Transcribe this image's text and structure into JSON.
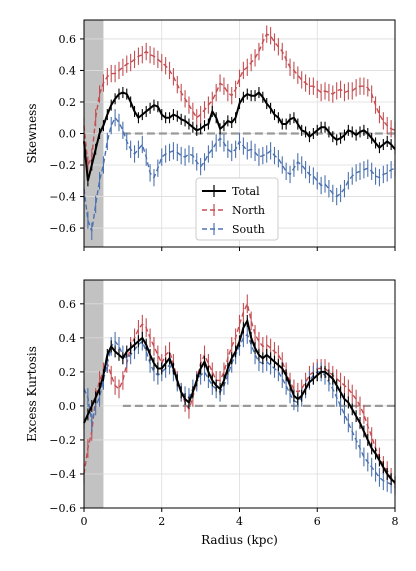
{
  "chart_data": [
    {
      "type": "line",
      "xlabel": "",
      "ylabel": "Skewness",
      "xlim": [
        0,
        8
      ],
      "ylim": [
        -0.72,
        0.72
      ],
      "xticks": [
        0,
        2,
        4,
        6,
        8
      ],
      "xticklabels": [
        "",
        "",
        "",
        "",
        ""
      ],
      "yticks": [
        -0.6,
        -0.4,
        -0.2,
        0.0,
        0.2,
        0.4,
        0.6
      ],
      "yticklabels": [
        "−0.6",
        "−0.4",
        "−0.2",
        "0.0",
        "0.2",
        "0.4",
        "0.6"
      ],
      "grid": true,
      "shaded_region_x": [
        0,
        0.5
      ],
      "reference_line_y": 0,
      "legend": {
        "position": "lower-center",
        "entries": [
          "Total",
          "North",
          "South"
        ]
      },
      "series": [
        {
          "name": "Total",
          "color": "#000000",
          "linestyle": "solid",
          "x": [
            0,
            0.1,
            0.2,
            0.3,
            0.4,
            0.5,
            0.6,
            0.7,
            0.8,
            0.9,
            1.0,
            1.1,
            1.2,
            1.3,
            1.4,
            1.5,
            1.6,
            1.7,
            1.8,
            1.9,
            2.0,
            2.1,
            2.2,
            2.3,
            2.4,
            2.5,
            2.6,
            2.7,
            2.8,
            2.9,
            3.0,
            3.1,
            3.2,
            3.3,
            3.4,
            3.5,
            3.6,
            3.7,
            3.8,
            3.9,
            4.0,
            4.1,
            4.2,
            4.3,
            4.4,
            4.5,
            4.6,
            4.7,
            4.8,
            4.9,
            5.0,
            5.1,
            5.2,
            5.3,
            5.4,
            5.5,
            5.6,
            5.7,
            5.8,
            5.9,
            6.0,
            6.1,
            6.2,
            6.3,
            6.4,
            6.5,
            6.6,
            6.7,
            6.8,
            6.9,
            7.0,
            7.1,
            7.2,
            7.3,
            7.4,
            7.5,
            7.6,
            7.7,
            7.8,
            7.9,
            8.0
          ],
          "y": [
            -0.05,
            -0.3,
            -0.2,
            -0.1,
            0.0,
            0.05,
            0.12,
            0.18,
            0.22,
            0.25,
            0.26,
            0.25,
            0.2,
            0.14,
            0.1,
            0.12,
            0.14,
            0.16,
            0.18,
            0.17,
            0.12,
            0.1,
            0.1,
            0.12,
            0.11,
            0.09,
            0.08,
            0.06,
            0.04,
            0.02,
            0.03,
            0.05,
            0.06,
            0.14,
            0.1,
            0.03,
            0.05,
            0.08,
            0.07,
            0.1,
            0.19,
            0.23,
            0.25,
            0.24,
            0.24,
            0.26,
            0.23,
            0.19,
            0.16,
            0.12,
            0.1,
            0.06,
            0.06,
            0.09,
            0.1,
            0.06,
            0.02,
            0.01,
            -0.02,
            0.0,
            0.02,
            0.04,
            0.04,
            0.01,
            -0.02,
            -0.04,
            -0.03,
            -0.01,
            0.02,
            0.01,
            -0.01,
            0.01,
            0.02,
            0.0,
            -0.03,
            -0.06,
            -0.09,
            -0.07,
            -0.05,
            -0.07,
            -0.1
          ]
        },
        {
          "name": "North",
          "color": "#c44e52",
          "linestyle": "dashed",
          "x": [
            0,
            0.1,
            0.2,
            0.3,
            0.4,
            0.5,
            0.6,
            0.7,
            0.8,
            0.9,
            1.0,
            1.1,
            1.2,
            1.3,
            1.4,
            1.5,
            1.6,
            1.7,
            1.8,
            1.9,
            2.0,
            2.1,
            2.2,
            2.3,
            2.4,
            2.5,
            2.6,
            2.7,
            2.8,
            2.9,
            3.0,
            3.1,
            3.2,
            3.3,
            3.4,
            3.5,
            3.6,
            3.7,
            3.8,
            3.9,
            4.0,
            4.1,
            4.2,
            4.3,
            4.4,
            4.5,
            4.6,
            4.7,
            4.8,
            4.9,
            5.0,
            5.1,
            5.2,
            5.3,
            5.4,
            5.5,
            5.6,
            5.7,
            5.8,
            5.9,
            6.0,
            6.1,
            6.2,
            6.3,
            6.4,
            6.5,
            6.6,
            6.7,
            6.8,
            6.9,
            7.0,
            7.1,
            7.2,
            7.3,
            7.4,
            7.5,
            7.6,
            7.7,
            7.8,
            7.9,
            8.0
          ],
          "y": [
            0.05,
            -0.2,
            -0.15,
            0.1,
            0.25,
            0.32,
            0.36,
            0.38,
            0.38,
            0.4,
            0.42,
            0.44,
            0.45,
            0.47,
            0.49,
            0.5,
            0.52,
            0.5,
            0.49,
            0.47,
            0.45,
            0.43,
            0.4,
            0.36,
            0.31,
            0.26,
            0.22,
            0.18,
            0.14,
            0.1,
            0.12,
            0.15,
            0.18,
            0.21,
            0.26,
            0.32,
            0.3,
            0.26,
            0.24,
            0.28,
            0.35,
            0.4,
            0.42,
            0.45,
            0.48,
            0.52,
            0.58,
            0.63,
            0.62,
            0.58,
            0.55,
            0.52,
            0.47,
            0.42,
            0.4,
            0.37,
            0.34,
            0.32,
            0.3,
            0.3,
            0.28,
            0.26,
            0.27,
            0.26,
            0.25,
            0.27,
            0.28,
            0.26,
            0.27,
            0.27,
            0.29,
            0.3,
            0.3,
            0.29,
            0.25,
            0.18,
            0.12,
            0.08,
            0.05,
            0.03,
            0.02
          ]
        },
        {
          "name": "South",
          "color": "#4c72b0",
          "linestyle": "dashed",
          "x": [
            0,
            0.1,
            0.2,
            0.3,
            0.4,
            0.5,
            0.6,
            0.7,
            0.8,
            0.9,
            1.0,
            1.1,
            1.2,
            1.3,
            1.4,
            1.5,
            1.6,
            1.7,
            1.8,
            1.9,
            2.0,
            2.1,
            2.2,
            2.3,
            2.4,
            2.5,
            2.6,
            2.7,
            2.8,
            2.9,
            3.0,
            3.1,
            3.2,
            3.3,
            3.4,
            3.5,
            3.6,
            3.7,
            3.8,
            3.9,
            4.0,
            4.1,
            4.2,
            4.3,
            4.4,
            4.5,
            4.6,
            4.7,
            4.8,
            4.9,
            5.0,
            5.1,
            5.2,
            5.3,
            5.4,
            5.5,
            5.6,
            5.7,
            5.8,
            5.9,
            6.0,
            6.1,
            6.2,
            6.3,
            6.4,
            6.5,
            6.6,
            6.7,
            6.8,
            6.9,
            7.0,
            7.1,
            7.2,
            7.3,
            7.4,
            7.5,
            7.6,
            7.7,
            7.8,
            7.9,
            8.0
          ],
          "y": [
            -0.35,
            -0.55,
            -0.62,
            -0.45,
            -0.3,
            -0.2,
            -0.05,
            0.05,
            0.1,
            0.07,
            0.02,
            -0.05,
            -0.1,
            -0.13,
            -0.1,
            -0.07,
            -0.15,
            -0.25,
            -0.28,
            -0.22,
            -0.15,
            -0.13,
            -0.12,
            -0.11,
            -0.12,
            -0.14,
            -0.15,
            -0.13,
            -0.14,
            -0.18,
            -0.21,
            -0.18,
            -0.13,
            -0.1,
            -0.06,
            -0.03,
            -0.06,
            -0.1,
            -0.12,
            -0.1,
            -0.05,
            -0.08,
            -0.11,
            -0.1,
            -0.12,
            -0.15,
            -0.14,
            -0.13,
            -0.11,
            -0.14,
            -0.16,
            -0.2,
            -0.24,
            -0.26,
            -0.22,
            -0.18,
            -0.2,
            -0.23,
            -0.26,
            -0.27,
            -0.3,
            -0.33,
            -0.32,
            -0.35,
            -0.38,
            -0.4,
            -0.38,
            -0.35,
            -0.3,
            -0.27,
            -0.25,
            -0.24,
            -0.23,
            -0.22,
            -0.24,
            -0.27,
            -0.28,
            -0.26,
            -0.25,
            -0.23,
            -0.22
          ]
        }
      ]
    },
    {
      "type": "line",
      "xlabel": "Radius (kpc)",
      "ylabel": "Excess Kurtosis",
      "xlim": [
        0,
        8
      ],
      "ylim": [
        -0.6,
        0.74
      ],
      "xticks": [
        0,
        2,
        4,
        6,
        8
      ],
      "xticklabels": [
        "0",
        "2",
        "4",
        "6",
        "8"
      ],
      "yticks": [
        -0.6,
        -0.4,
        -0.2,
        0.0,
        0.2,
        0.4,
        0.6
      ],
      "yticklabels": [
        "−0.6",
        "−0.4",
        "−0.2",
        "0.0",
        "0.2",
        "0.4",
        "0.6"
      ],
      "grid": true,
      "shaded_region_x": [
        0,
        0.5
      ],
      "reference_line_y": 0,
      "series": [
        {
          "name": "Total",
          "color": "#000000",
          "linestyle": "solid",
          "x": [
            0,
            0.1,
            0.2,
            0.3,
            0.4,
            0.5,
            0.6,
            0.7,
            0.8,
            0.9,
            1.0,
            1.1,
            1.2,
            1.3,
            1.4,
            1.5,
            1.6,
            1.7,
            1.8,
            1.9,
            2.0,
            2.1,
            2.2,
            2.3,
            2.4,
            2.5,
            2.6,
            2.7,
            2.8,
            2.9,
            3.0,
            3.1,
            3.2,
            3.3,
            3.4,
            3.5,
            3.6,
            3.7,
            3.8,
            3.9,
            4.0,
            4.1,
            4.2,
            4.3,
            4.4,
            4.5,
            4.6,
            4.7,
            4.8,
            4.9,
            5.0,
            5.1,
            5.2,
            5.3,
            5.4,
            5.5,
            5.6,
            5.7,
            5.8,
            5.9,
            6.0,
            6.1,
            6.2,
            6.3,
            6.4,
            6.5,
            6.6,
            6.7,
            6.8,
            6.9,
            7.0,
            7.1,
            7.2,
            7.3,
            7.4,
            7.5,
            7.6,
            7.7,
            7.8,
            7.9,
            8.0
          ],
          "y": [
            -0.1,
            -0.05,
            0.0,
            0.05,
            0.1,
            0.18,
            0.3,
            0.35,
            0.32,
            0.3,
            0.28,
            0.32,
            0.34,
            0.36,
            0.38,
            0.4,
            0.36,
            0.3,
            0.25,
            0.22,
            0.22,
            0.25,
            0.28,
            0.22,
            0.15,
            0.08,
            0.04,
            0.02,
            0.08,
            0.15,
            0.22,
            0.26,
            0.2,
            0.15,
            0.12,
            0.1,
            0.15,
            0.22,
            0.28,
            0.32,
            0.38,
            0.46,
            0.5,
            0.4,
            0.34,
            0.3,
            0.28,
            0.3,
            0.28,
            0.26,
            0.24,
            0.22,
            0.18,
            0.12,
            0.06,
            0.04,
            0.06,
            0.1,
            0.14,
            0.16,
            0.18,
            0.2,
            0.2,
            0.18,
            0.16,
            0.12,
            0.08,
            0.04,
            0.02,
            -0.02,
            -0.06,
            -0.1,
            -0.15,
            -0.2,
            -0.25,
            -0.28,
            -0.32,
            -0.36,
            -0.4,
            -0.43,
            -0.45
          ]
        },
        {
          "name": "North",
          "color": "#c44e52",
          "linestyle": "dashed",
          "x": [
            0,
            0.1,
            0.2,
            0.3,
            0.4,
            0.5,
            0.6,
            0.7,
            0.8,
            0.9,
            1.0,
            1.1,
            1.2,
            1.3,
            1.4,
            1.5,
            1.6,
            1.7,
            1.8,
            1.9,
            2.0,
            2.1,
            2.2,
            2.3,
            2.4,
            2.5,
            2.6,
            2.7,
            2.8,
            2.9,
            3.0,
            3.1,
            3.2,
            3.3,
            3.4,
            3.5,
            3.6,
            3.7,
            3.8,
            3.9,
            4.0,
            4.1,
            4.2,
            4.3,
            4.4,
            4.5,
            4.6,
            4.7,
            4.8,
            4.9,
            5.0,
            5.1,
            5.2,
            5.3,
            5.4,
            5.5,
            5.6,
            5.7,
            5.8,
            5.9,
            6.0,
            6.1,
            6.2,
            6.3,
            6.4,
            6.5,
            6.6,
            6.7,
            6.8,
            6.9,
            7.0,
            7.1,
            7.2,
            7.3,
            7.4,
            7.5,
            7.6,
            7.7,
            7.8,
            7.9,
            8.0
          ],
          "y": [
            -0.4,
            -0.25,
            -0.15,
            0.05,
            0.15,
            0.2,
            0.25,
            0.18,
            0.12,
            0.1,
            0.15,
            0.25,
            0.35,
            0.4,
            0.45,
            0.48,
            0.46,
            0.4,
            0.35,
            0.3,
            0.25,
            0.3,
            0.32,
            0.25,
            0.15,
            0.08,
            0.02,
            -0.02,
            0.05,
            0.15,
            0.25,
            0.3,
            0.25,
            0.2,
            0.15,
            0.15,
            0.2,
            0.28,
            0.35,
            0.4,
            0.48,
            0.55,
            0.6,
            0.5,
            0.42,
            0.38,
            0.35,
            0.36,
            0.34,
            0.32,
            0.3,
            0.26,
            0.2,
            0.14,
            0.1,
            0.08,
            0.1,
            0.14,
            0.18,
            0.2,
            0.22,
            0.22,
            0.22,
            0.2,
            0.18,
            0.16,
            0.14,
            0.12,
            0.1,
            0.07,
            0.04,
            0.0,
            -0.05,
            -0.12,
            -0.18,
            -0.25,
            -0.3,
            -0.35,
            -0.38,
            -0.42,
            -0.46
          ]
        },
        {
          "name": "South",
          "color": "#4c72b0",
          "linestyle": "dashed",
          "x": [
            0,
            0.1,
            0.2,
            0.3,
            0.4,
            0.5,
            0.6,
            0.7,
            0.8,
            0.9,
            1.0,
            1.1,
            1.2,
            1.3,
            1.4,
            1.5,
            1.6,
            1.7,
            1.8,
            1.9,
            2.0,
            2.1,
            2.2,
            2.3,
            2.4,
            2.5,
            2.6,
            2.7,
            2.8,
            2.9,
            3.0,
            3.1,
            3.2,
            3.3,
            3.4,
            3.5,
            3.6,
            3.7,
            3.8,
            3.9,
            4.0,
            4.1,
            4.2,
            4.3,
            4.4,
            4.5,
            4.6,
            4.7,
            4.8,
            4.9,
            5.0,
            5.1,
            5.2,
            5.3,
            5.4,
            5.5,
            5.6,
            5.7,
            5.8,
            5.9,
            6.0,
            6.1,
            6.2,
            6.3,
            6.4,
            6.5,
            6.6,
            6.7,
            6.8,
            6.9,
            7.0,
            7.1,
            7.2,
            7.3,
            7.4,
            7.5,
            7.6,
            7.7,
            7.8,
            7.9,
            8.0
          ],
          "y": [
            0.1,
            0.05,
            -0.1,
            0.0,
            0.05,
            0.15,
            0.25,
            0.35,
            0.38,
            0.35,
            0.3,
            0.28,
            0.3,
            0.33,
            0.36,
            0.38,
            0.32,
            0.25,
            0.2,
            0.18,
            0.2,
            0.22,
            0.24,
            0.2,
            0.14,
            0.08,
            0.06,
            0.05,
            0.1,
            0.14,
            0.18,
            0.2,
            0.16,
            0.12,
            0.1,
            0.08,
            0.12,
            0.18,
            0.25,
            0.3,
            0.35,
            0.4,
            0.42,
            0.36,
            0.3,
            0.26,
            0.25,
            0.26,
            0.24,
            0.22,
            0.2,
            0.16,
            0.12,
            0.07,
            0.03,
            0.02,
            0.05,
            0.1,
            0.15,
            0.18,
            0.2,
            0.2,
            0.18,
            0.14,
            0.1,
            0.05,
            0.0,
            -0.05,
            -0.1,
            -0.15,
            -0.2,
            -0.25,
            -0.3,
            -0.33,
            -0.36,
            -0.39,
            -0.42,
            -0.44,
            -0.45,
            -0.46,
            -0.47
          ]
        }
      ]
    }
  ]
}
